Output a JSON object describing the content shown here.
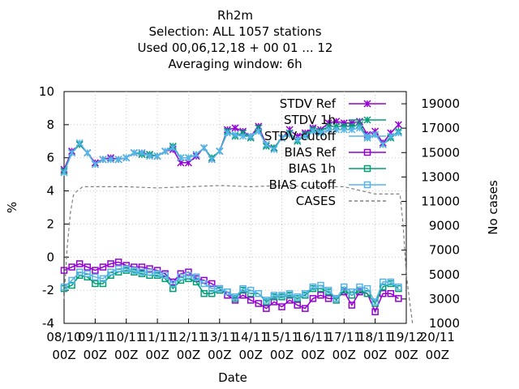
{
  "chart_data": {
    "type": "line",
    "title_lines": [
      "Rh2m",
      "Selection: ALL    1057 stations",
      "Used  00,06,12,18 + 00 01 ... 12",
      "Averaging window:  6h"
    ],
    "xlabel": "Date",
    "ylabel": "%",
    "y2label": "No cases",
    "xlim": [
      0,
      11
    ],
    "ylim": [
      -4,
      10
    ],
    "y2lim": [
      1000,
      20000
    ],
    "x_ticks": [
      {
        "x": 0,
        "l1": "08/10",
        "l2": "00Z"
      },
      {
        "x": 1,
        "l1": "09/11",
        "l2": "00Z"
      },
      {
        "x": 2,
        "l1": "10/11",
        "l2": "00Z"
      },
      {
        "x": 3,
        "l1": "11/11",
        "l2": "00Z"
      },
      {
        "x": 4,
        "l1": "12/11",
        "l2": "00Z"
      },
      {
        "x": 5,
        "l1": "13/11",
        "l2": "00Z"
      },
      {
        "x": 6,
        "l1": "14/11",
        "l2": "00Z"
      },
      {
        "x": 7,
        "l1": "15/11",
        "l2": "00Z"
      },
      {
        "x": 8,
        "l1": "16/11",
        "l2": "00Z"
      },
      {
        "x": 9,
        "l1": "17/11",
        "l2": "00Z"
      },
      {
        "x": 10,
        "l1": "18/11",
        "l2": "00Z"
      },
      {
        "x": 11,
        "l1": "19/12",
        "l2": "00Z"
      },
      {
        "x": 12,
        "l1": "20/11",
        "l2": "00Z"
      }
    ],
    "y_ticks": [
      -4,
      -2,
      0,
      2,
      4,
      6,
      8,
      10
    ],
    "y2_ticks": [
      1000,
      3000,
      5000,
      7000,
      9000,
      11000,
      13000,
      15000,
      17000,
      19000
    ],
    "grid": true,
    "legend_position": "top-right",
    "x": [
      0,
      0.25,
      0.5,
      0.75,
      1,
      1.25,
      1.5,
      1.75,
      2,
      2.25,
      2.5,
      2.75,
      3,
      3.25,
      3.5,
      3.75,
      4,
      4.25,
      4.5,
      4.75,
      5,
      5.25,
      5.5,
      5.75,
      6,
      6.25,
      6.5,
      6.75,
      7,
      7.25,
      7.5,
      7.75,
      8,
      8.25,
      8.5,
      8.75,
      9,
      9.25,
      9.5,
      9.75,
      10,
      10.25,
      10.5,
      10.75
    ],
    "series": [
      {
        "name": "STDV Ref",
        "color": "#9400d3",
        "marker": "x",
        "axis": "y",
        "values": [
          5.3,
          6.4,
          6.8,
          6.3,
          5.7,
          5.9,
          6.0,
          5.9,
          6.0,
          6.3,
          6.3,
          6.2,
          6.1,
          6.4,
          6.5,
          5.7,
          5.7,
          6.1,
          6.6,
          5.9,
          6.4,
          7.7,
          7.8,
          7.6,
          7.3,
          7.9,
          6.8,
          6.6,
          7.2,
          7.7,
          7.3,
          7.5,
          7.8,
          7.7,
          8.1,
          8.2,
          8.1,
          8.1,
          8.2,
          7.4,
          7.6,
          6.9,
          7.5,
          8.0
        ]
      },
      {
        "name": "STDV 1h",
        "color": "#009e73",
        "marker": "x",
        "axis": "y",
        "values": [
          5.2,
          6.3,
          6.8,
          6.3,
          5.6,
          5.9,
          5.9,
          5.9,
          6.0,
          6.3,
          6.2,
          6.2,
          6.1,
          6.4,
          6.7,
          6.0,
          6.0,
          6.2,
          6.6,
          6.0,
          6.4,
          7.6,
          7.3,
          7.5,
          7.2,
          7.8,
          6.7,
          6.6,
          7.2,
          7.5,
          7.0,
          7.4,
          7.7,
          7.6,
          7.9,
          7.9,
          7.9,
          7.9,
          8.0,
          7.2,
          7.4,
          6.8,
          7.2,
          7.6
        ]
      },
      {
        "name": "STDV cutoff",
        "color": "#56b4e9",
        "marker": "x",
        "axis": "y",
        "values": [
          5.1,
          6.3,
          6.9,
          6.3,
          5.6,
          5.9,
          5.9,
          5.9,
          6.0,
          6.3,
          6.3,
          6.1,
          6.1,
          6.4,
          6.6,
          6.0,
          6.0,
          6.2,
          6.6,
          5.9,
          6.4,
          7.5,
          7.4,
          7.3,
          7.3,
          7.6,
          6.8,
          6.5,
          7.2,
          7.4,
          7.1,
          7.3,
          7.6,
          7.5,
          7.7,
          7.7,
          7.7,
          7.7,
          7.8,
          7.2,
          7.4,
          6.8,
          7.3,
          7.5
        ]
      },
      {
        "name": "BIAS Ref",
        "color": "#9400d3",
        "marker": "square",
        "axis": "y",
        "values": [
          -0.8,
          -0.6,
          -0.4,
          -0.6,
          -0.8,
          -0.6,
          -0.4,
          -0.3,
          -0.5,
          -0.6,
          -0.6,
          -0.7,
          -0.8,
          -1.0,
          -1.5,
          -1.0,
          -0.9,
          -1.3,
          -1.4,
          -1.6,
          -1.9,
          -2.3,
          -2.6,
          -2.3,
          -2.6,
          -2.8,
          -3.1,
          -2.7,
          -3.0,
          -2.6,
          -2.9,
          -3.1,
          -2.5,
          -2.3,
          -2.5,
          -2.5,
          -2.1,
          -2.9,
          -2.1,
          -2.2,
          -3.3,
          -2.2,
          -2.2,
          -2.5
        ]
      },
      {
        "name": "BIAS 1h",
        "color": "#009e73",
        "marker": "square",
        "axis": "y",
        "values": [
          -1.9,
          -1.7,
          -1.1,
          -1.2,
          -1.6,
          -1.6,
          -1.1,
          -0.9,
          -0.8,
          -0.9,
          -1.0,
          -1.1,
          -1.1,
          -1.3,
          -1.9,
          -1.4,
          -1.3,
          -1.5,
          -2.2,
          -2.2,
          -2.0,
          -2.1,
          -2.5,
          -2.0,
          -2.2,
          -2.2,
          -2.7,
          -2.4,
          -2.4,
          -2.3,
          -2.5,
          -2.3,
          -1.9,
          -1.9,
          -2.1,
          -2.6,
          -2.0,
          -2.3,
          -2.0,
          -2.2,
          -2.8,
          -1.8,
          -1.6,
          -1.9
        ]
      },
      {
        "name": "BIAS cutoff",
        "color": "#56b4e9",
        "marker": "square",
        "axis": "y",
        "values": [
          -1.8,
          -1.4,
          -0.9,
          -1.0,
          -1.2,
          -1.3,
          -0.9,
          -0.7,
          -0.7,
          -0.8,
          -0.9,
          -0.9,
          -1.0,
          -1.1,
          -1.6,
          -1.2,
          -1.1,
          -1.2,
          -1.6,
          -1.9,
          -1.9,
          -2.1,
          -2.4,
          -1.9,
          -2.0,
          -2.2,
          -2.6,
          -2.3,
          -2.3,
          -2.2,
          -2.4,
          -2.2,
          -1.8,
          -1.7,
          -2.0,
          -2.5,
          -1.8,
          -2.1,
          -1.8,
          -1.9,
          -2.7,
          -1.5,
          -1.5,
          -1.8
        ]
      },
      {
        "name": "CASES",
        "color": "#808080",
        "marker": "none",
        "dashed": true,
        "axis": "y2",
        "x": [
          0,
          0.1,
          0.2,
          0.3,
          0.4,
          0.6,
          1,
          2,
          3,
          4,
          5,
          6,
          7,
          8,
          9,
          10,
          10.8,
          10.9,
          11.0,
          11.1,
          11.2
        ],
        "values": [
          3000,
          7200,
          10000,
          11500,
          11800,
          12200,
          12200,
          12200,
          12100,
          12200,
          12300,
          12200,
          12300,
          12200,
          12200,
          11600,
          11600,
          9000,
          5000,
          3000,
          1000
        ]
      }
    ]
  }
}
